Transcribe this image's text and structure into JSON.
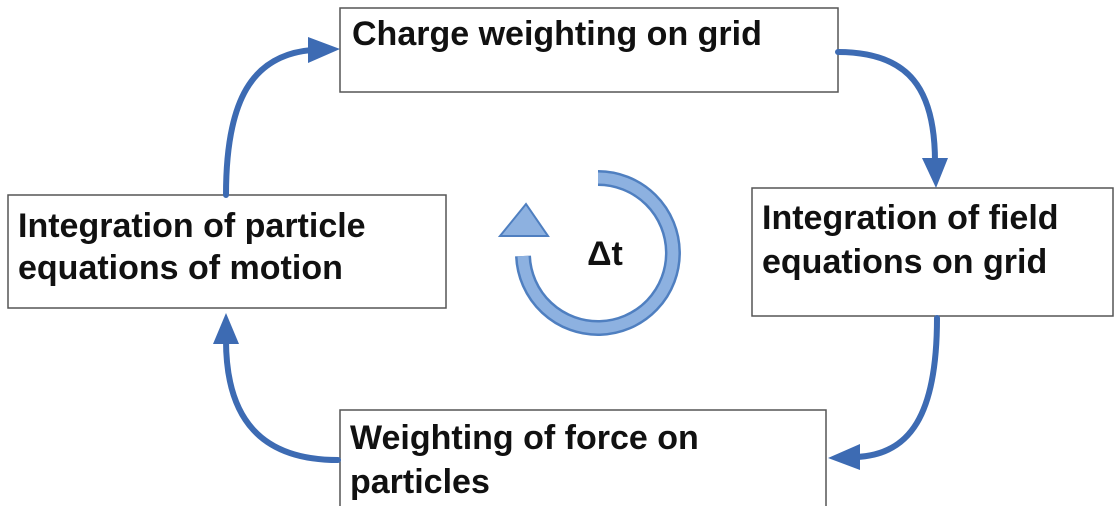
{
  "nodes": [
    {
      "lines": [
        "Charge weighting on grid"
      ]
    },
    {
      "lines": [
        "Integration of field",
        "equations on grid"
      ]
    },
    {
      "lines": [
        "Weighting of force on",
        "particles"
      ]
    },
    {
      "lines": [
        "Integration of particle",
        "equations of motion"
      ]
    }
  ],
  "center_label": "Δt"
}
